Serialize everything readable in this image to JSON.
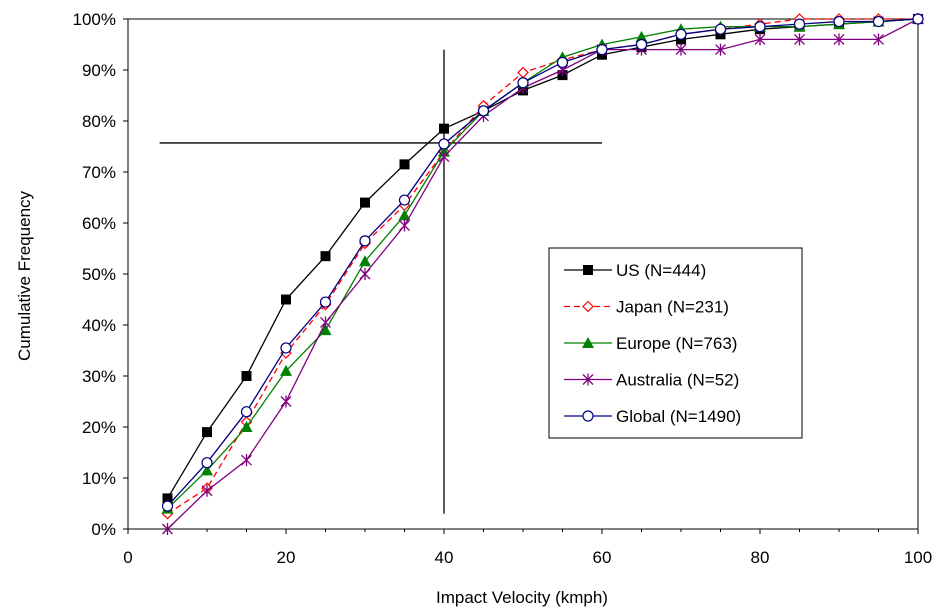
{
  "chart_data": {
    "type": "line",
    "title": "",
    "xlabel": "Impact Velocity (kmph)",
    "ylabel": "Cumulative Frequency",
    "xlim": [
      0,
      100
    ],
    "ylim": [
      0,
      100
    ],
    "x_ticks": [
      "0",
      "20",
      "40",
      "60",
      "80",
      "100"
    ],
    "y_ticks": [
      "0%",
      "10%",
      "20%",
      "30%",
      "40%",
      "50%",
      "60%",
      "70%",
      "80%",
      "90%",
      "100%"
    ],
    "grid": false,
    "legend_position": "center-right",
    "reference_lines": {
      "horizontal": {
        "y": 75.7,
        "x_from": 4,
        "x_to": 60
      },
      "vertical": {
        "x": 40,
        "y_from": 3,
        "y_to": 94
      }
    },
    "x": [
      5,
      10,
      15,
      20,
      25,
      30,
      35,
      40,
      45,
      50,
      55,
      60,
      65,
      70,
      75,
      80,
      85,
      90,
      95,
      100
    ],
    "series": [
      {
        "name": "US (N=444)",
        "color": "#000000",
        "dash": "",
        "marker": "square",
        "values": [
          6,
          19,
          30,
          45,
          53.5,
          64,
          71.5,
          78.5,
          82,
          86,
          89,
          93,
          94.5,
          96,
          97,
          98,
          98.5,
          99,
          99.5,
          100
        ]
      },
      {
        "name": "Japan (N=231)",
        "color": "#ff0000",
        "dash": "6,4",
        "marker": "diamond-open",
        "values": [
          3,
          8,
          21,
          34.5,
          44,
          56,
          63.5,
          74,
          83,
          89.5,
          92,
          94,
          95,
          97,
          98,
          99,
          100,
          100,
          100,
          100
        ]
      },
      {
        "name": "Europe (N=763)",
        "color": "#008000",
        "dash": "",
        "marker": "triangle",
        "values": [
          4,
          11.5,
          20,
          31,
          39,
          52.5,
          61.5,
          74,
          82,
          87.5,
          92.5,
          95,
          96.5,
          98,
          98.5,
          98.5,
          98.5,
          99,
          99.5,
          100
        ]
      },
      {
        "name": "Australia (N=52)",
        "color": "#800080",
        "dash": "",
        "marker": "asterisk",
        "values": [
          0,
          7.5,
          13.5,
          25,
          40.5,
          50,
          59.5,
          73,
          81,
          86.5,
          90,
          94,
          94,
          94,
          94,
          96,
          96,
          96,
          96,
          100
        ]
      },
      {
        "name": "Global (N=1490)",
        "color": "#000080",
        "dash": "",
        "marker": "circle-open",
        "values": [
          4.5,
          13,
          23,
          35.5,
          44.5,
          56.5,
          64.5,
          75.5,
          82,
          87.5,
          91.5,
          94,
          95,
          97,
          98,
          98.5,
          99,
          99.5,
          99.5,
          100
        ]
      }
    ]
  }
}
